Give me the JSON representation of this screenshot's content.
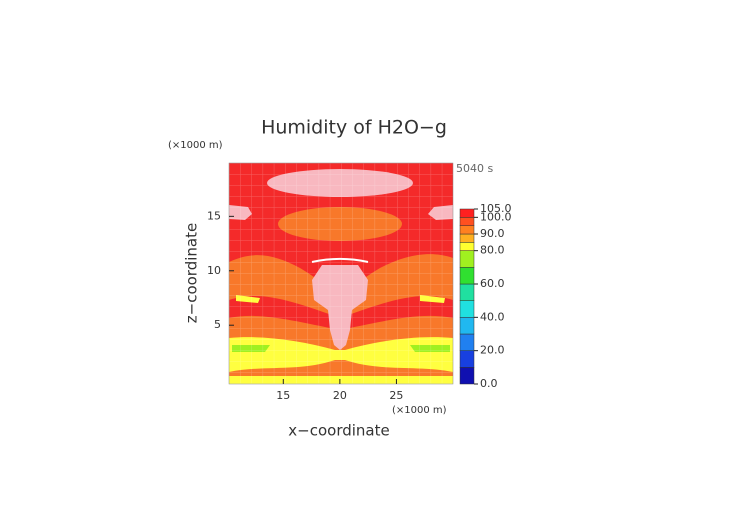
{
  "chart_data": {
    "type": "contour",
    "title": "Humidity of H2O−g",
    "time_label": "5040 s",
    "x_label": "x−coordinate",
    "y_label": "z−coordinate",
    "x_unit": "(×1000 m)",
    "y_unit": "(×1000 m)",
    "xlim": [
      10.2,
      30
    ],
    "ylim": [
      -0.4,
      19.9
    ],
    "xticks": [
      15,
      20,
      25
    ],
    "yticks": [
      5,
      10,
      15
    ],
    "colorbar": {
      "levels": [
        0,
        10,
        20,
        30,
        40,
        50,
        60,
        70,
        80,
        85,
        90,
        95,
        100,
        105
      ],
      "colors": [
        "#1010b0",
        "#1840e0",
        "#2080f0",
        "#20b8f0",
        "#20e0e0",
        "#20e0a0",
        "#30e030",
        "#a0f020",
        "#ffff30",
        "#ffb020",
        "#ff8020",
        "#ff5020",
        "#ff2020"
      ],
      "top_color": "#ffffff",
      "ticks": [
        {
          "value": 0,
          "label": "0.0"
        },
        {
          "value": 20,
          "label": "20.0"
        },
        {
          "value": 40,
          "label": "40.0"
        },
        {
          "value": 60,
          "label": "60.0"
        },
        {
          "value": 80,
          "label": "80.0"
        },
        {
          "value": 90,
          "label": "90.0"
        },
        {
          "value": 100,
          "label": "100.0"
        },
        {
          "value": 105,
          "label": "105.0"
        }
      ]
    }
  }
}
